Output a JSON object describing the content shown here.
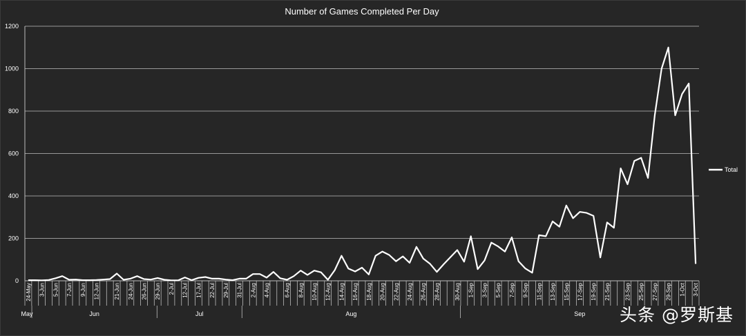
{
  "chart_data": {
    "type": "line",
    "title": "Number of Games Completed Per Day",
    "xlabel": "",
    "ylabel": "",
    "ylim": [
      0,
      1200
    ],
    "yticks": [
      0,
      200,
      400,
      600,
      800,
      1000,
      1200
    ],
    "grid": true,
    "legend_position": "right",
    "series": [
      {
        "name": "Total",
        "color": "#ffffff",
        "values": [
          3,
          3,
          2,
          4,
          12,
          22,
          5,
          6,
          3,
          3,
          4,
          6,
          8,
          34,
          5,
          10,
          22,
          8,
          6,
          13,
          5,
          2,
          2,
          16,
          3,
          14,
          18,
          10,
          10,
          6,
          3,
          10,
          10,
          32,
          32,
          15,
          42,
          12,
          5,
          22,
          48,
          28,
          48,
          40,
          5,
          50,
          118,
          58,
          44,
          62,
          30,
          118,
          138,
          122,
          92,
          115,
          85,
          160,
          105,
          80,
          42,
          78,
          112,
          145,
          90,
          210,
          55,
          96,
          180,
          162,
          138,
          205,
          92,
          58,
          38,
          215,
          210,
          280,
          255,
          355,
          295,
          325,
          320,
          306,
          110,
          275,
          250,
          530,
          455,
          565,
          580,
          485,
          780,
          1000,
          1100,
          780,
          880,
          930,
          80
        ]
      }
    ],
    "x_tick_labels": [
      "24-May",
      "3-Jun",
      "5-Jun",
      "7-Jun",
      "9-Jun",
      "12-Jun",
      "21-Jun",
      "24-Jun",
      "26-Jun",
      "29-Jun",
      "2-Jul",
      "12-Jul",
      "17-Jul",
      "22-Jul",
      "29-Jul",
      "31-Jul",
      "2-Aug",
      "4-Aug",
      "6-Aug",
      "8-Aug",
      "10-Aug",
      "12-Aug",
      "14-Aug",
      "16-Aug",
      "18-Aug",
      "20-Aug",
      "22-Aug",
      "24-Aug",
      "26-Aug",
      "28-Aug",
      "30-Aug",
      "1-Sep",
      "3-Sep",
      "5-Sep",
      "7-Sep",
      "9-Sep",
      "11-Sep",
      "13-Sep",
      "15-Sep",
      "17-Sep",
      "19-Sep",
      "21-Sep",
      "23-Sep",
      "25-Sep",
      "27-Sep",
      "29-Sep",
      "1-Oct",
      "3-Oct"
    ],
    "month_labels": [
      "May",
      "Jun",
      "Jul",
      "Aug",
      "Sep"
    ]
  },
  "watermark": "头条 @罗斯基",
  "colors": {
    "background": "#262626",
    "line": "#ffffff",
    "grid": "#bfbfbf",
    "text": "#ffffff"
  }
}
